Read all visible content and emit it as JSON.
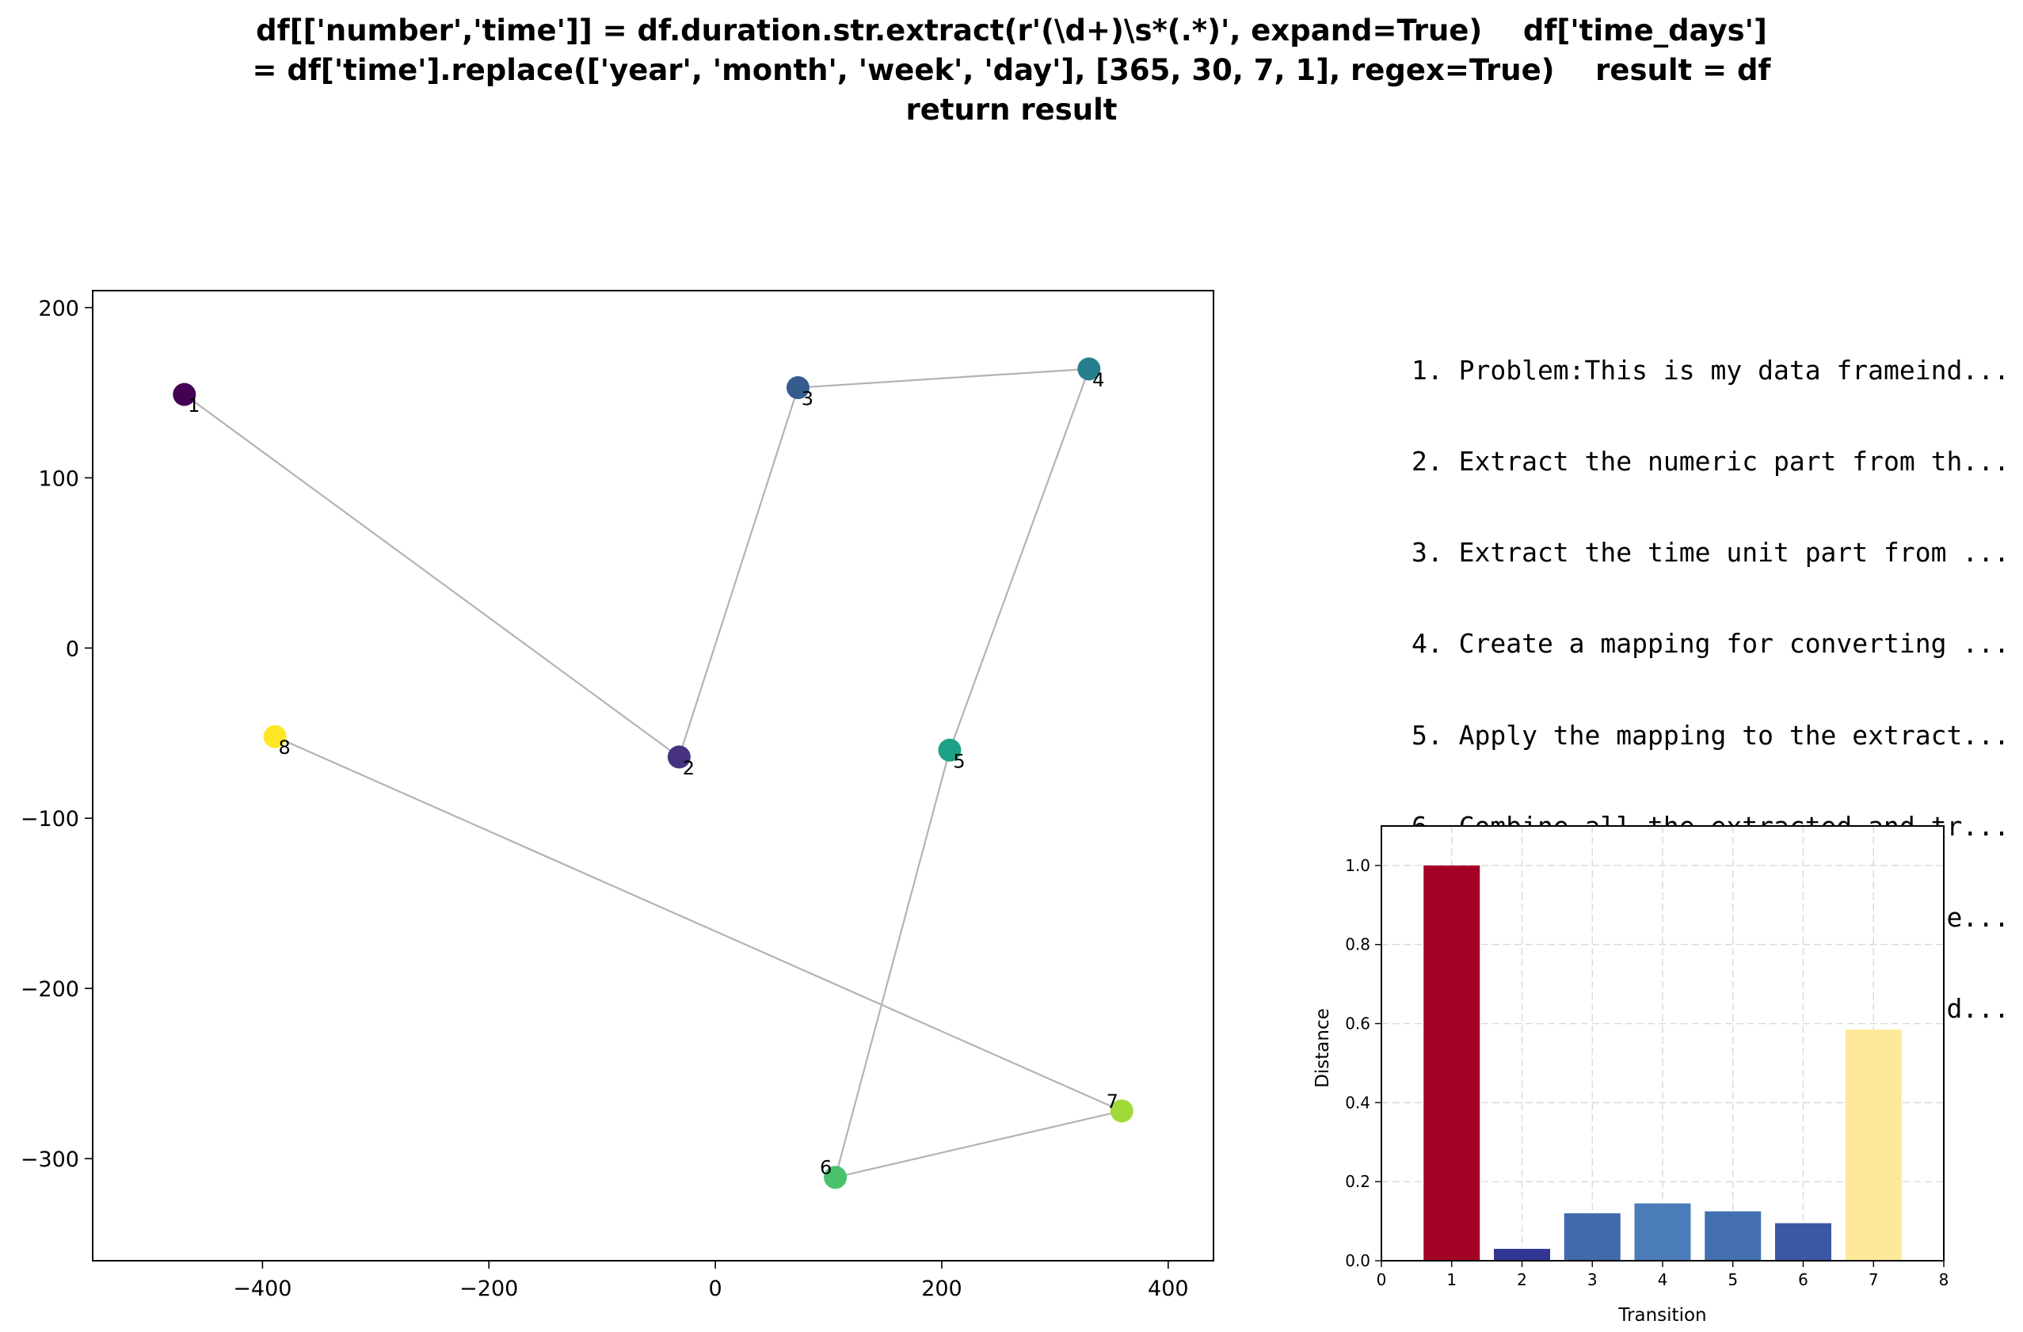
{
  "figure": {
    "title_lines": [
      "df[['number','time']] = df.duration.str.extract(r'(\\d+)\\s*(.*)', expand=True)    df['time_days']",
      "= df['time'].replace(['year', 'month', 'week', 'day'], [365, 30, 7, 1], regex=True)    result = df",
      "return result"
    ],
    "steps": [
      "1. Problem:This is my data frameind...",
      "2. Extract the numeric part from th...",
      "3. Extract the time unit part from ...",
      "4. Create a mapping for converting ...",
      "5. Apply the mapping to the extract...",
      "6. Combine all the extracted and tr...",
      "7. Verify the results to ensure the...",
      "8.     df[['number','time']] = df.d..."
    ]
  },
  "chart_data": [
    {
      "type": "scatter",
      "title": "",
      "xlabel": "",
      "ylabel": "",
      "xlim": [
        -550,
        440
      ],
      "ylim": [
        -360,
        210
      ],
      "xticks": [
        -400,
        -200,
        0,
        200,
        400
      ],
      "yticks": [
        200,
        100,
        0,
        -100,
        -200,
        -300
      ],
      "grid": false,
      "connected": true,
      "line_color": "#b3b3b3",
      "colormap": "viridis",
      "points": [
        {
          "label": "1",
          "x": -469,
          "y": 149,
          "color": "#440154"
        },
        {
          "label": "2",
          "x": -32,
          "y": -64,
          "color": "#46327e"
        },
        {
          "label": "3",
          "x": 73,
          "y": 153,
          "color": "#365c8d"
        },
        {
          "label": "4",
          "x": 330,
          "y": 164,
          "color": "#277f8e"
        },
        {
          "label": "5",
          "x": 207,
          "y": -60,
          "color": "#1fa187"
        },
        {
          "label": "6",
          "x": 106,
          "y": -311,
          "color": "#4ac16d"
        },
        {
          "label": "7",
          "x": 359,
          "y": -272,
          "color": "#a0da39"
        },
        {
          "label": "8",
          "x": -389,
          "y": -52,
          "color": "#fde725"
        }
      ]
    },
    {
      "type": "bar",
      "title": "",
      "xlabel": "Transition",
      "ylabel": "Distance",
      "xlim": [
        0,
        8
      ],
      "ylim": [
        0,
        1.1
      ],
      "xticks": [
        0,
        1,
        2,
        3,
        4,
        5,
        6,
        7,
        8
      ],
      "yticks": [
        0.0,
        0.2,
        0.4,
        0.6,
        0.8,
        1.0
      ],
      "ytick_labels": [
        "0.0",
        "0.2",
        "0.4",
        "0.6",
        "0.8",
        "1.0"
      ],
      "grid": true,
      "colormap": "RdYlBu_r",
      "bars": [
        {
          "x": 1,
          "value": 1.0,
          "color": "#a50026"
        },
        {
          "x": 2,
          "value": 0.03,
          "color": "#313695"
        },
        {
          "x": 3,
          "value": 0.12,
          "color": "#4169ad"
        },
        {
          "x": 4,
          "value": 0.145,
          "color": "#4a7cb9"
        },
        {
          "x": 5,
          "value": 0.125,
          "color": "#446fb1"
        },
        {
          "x": 6,
          "value": 0.095,
          "color": "#3b58a4"
        },
        {
          "x": 7,
          "value": 0.585,
          "color": "#fee99a"
        }
      ]
    }
  ]
}
